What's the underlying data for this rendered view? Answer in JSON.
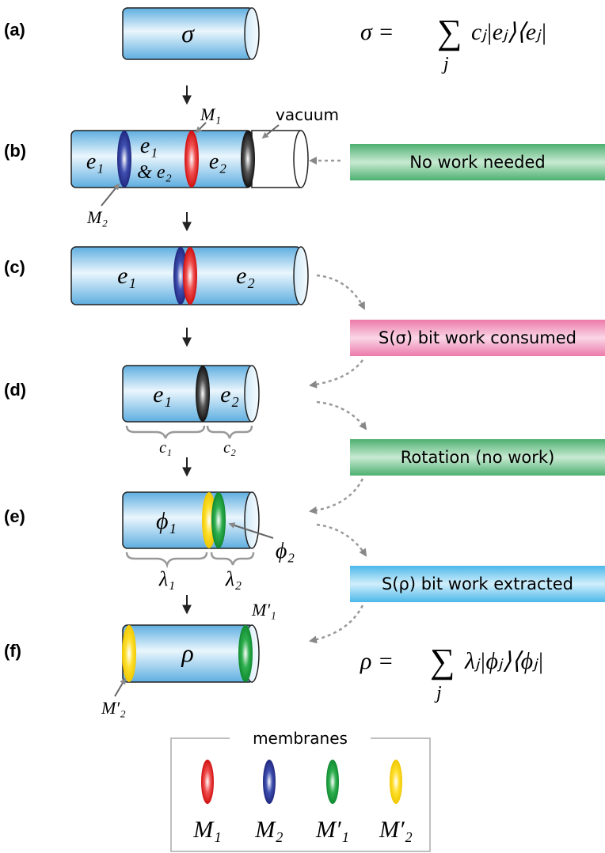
{
  "panels": {
    "a": {
      "label": "(a)",
      "state": "σ",
      "equation": {
        "left": "σ =",
        "sum": "∑",
        "index": "j",
        "term": "cⱼ|eⱼ⟩⟨eⱼ|"
      }
    },
    "b": {
      "label": "(b)",
      "left": "e₁",
      "middle_top": "e₁",
      "middle_bottom": "& e₂",
      "right": "e₂",
      "membrane_top": "M₁",
      "membrane_bottom": "M₂",
      "vacuum": "vacuum"
    },
    "c": {
      "label": "(c)",
      "left": "e₁",
      "right": "e₂"
    },
    "d": {
      "label": "(d)",
      "left": "e₁",
      "right": "e₂",
      "brace_left": "c₁",
      "brace_right": "c₂"
    },
    "e": {
      "label": "(e)",
      "left": "ϕ₁",
      "right": "ϕ₂",
      "brace_left": "λ₁",
      "brace_right": "λ₂"
    },
    "f": {
      "label": "(f)",
      "state": "ρ",
      "membrane_right": "M′₁",
      "membrane_left": "M′₂",
      "equation": {
        "left": "ρ =",
        "sum": "∑",
        "index": "j",
        "term": "λⱼ|ϕⱼ⟩⟨ϕⱼ|"
      }
    }
  },
  "steps": [
    "No work needed",
    "S(σ) bit work consumed",
    "Rotation (no work)",
    "S(ρ) bit work extracted"
  ],
  "legend": {
    "title": "membranes",
    "items": [
      "M₁",
      "M₂",
      "M′₁",
      "M′₂"
    ]
  }
}
